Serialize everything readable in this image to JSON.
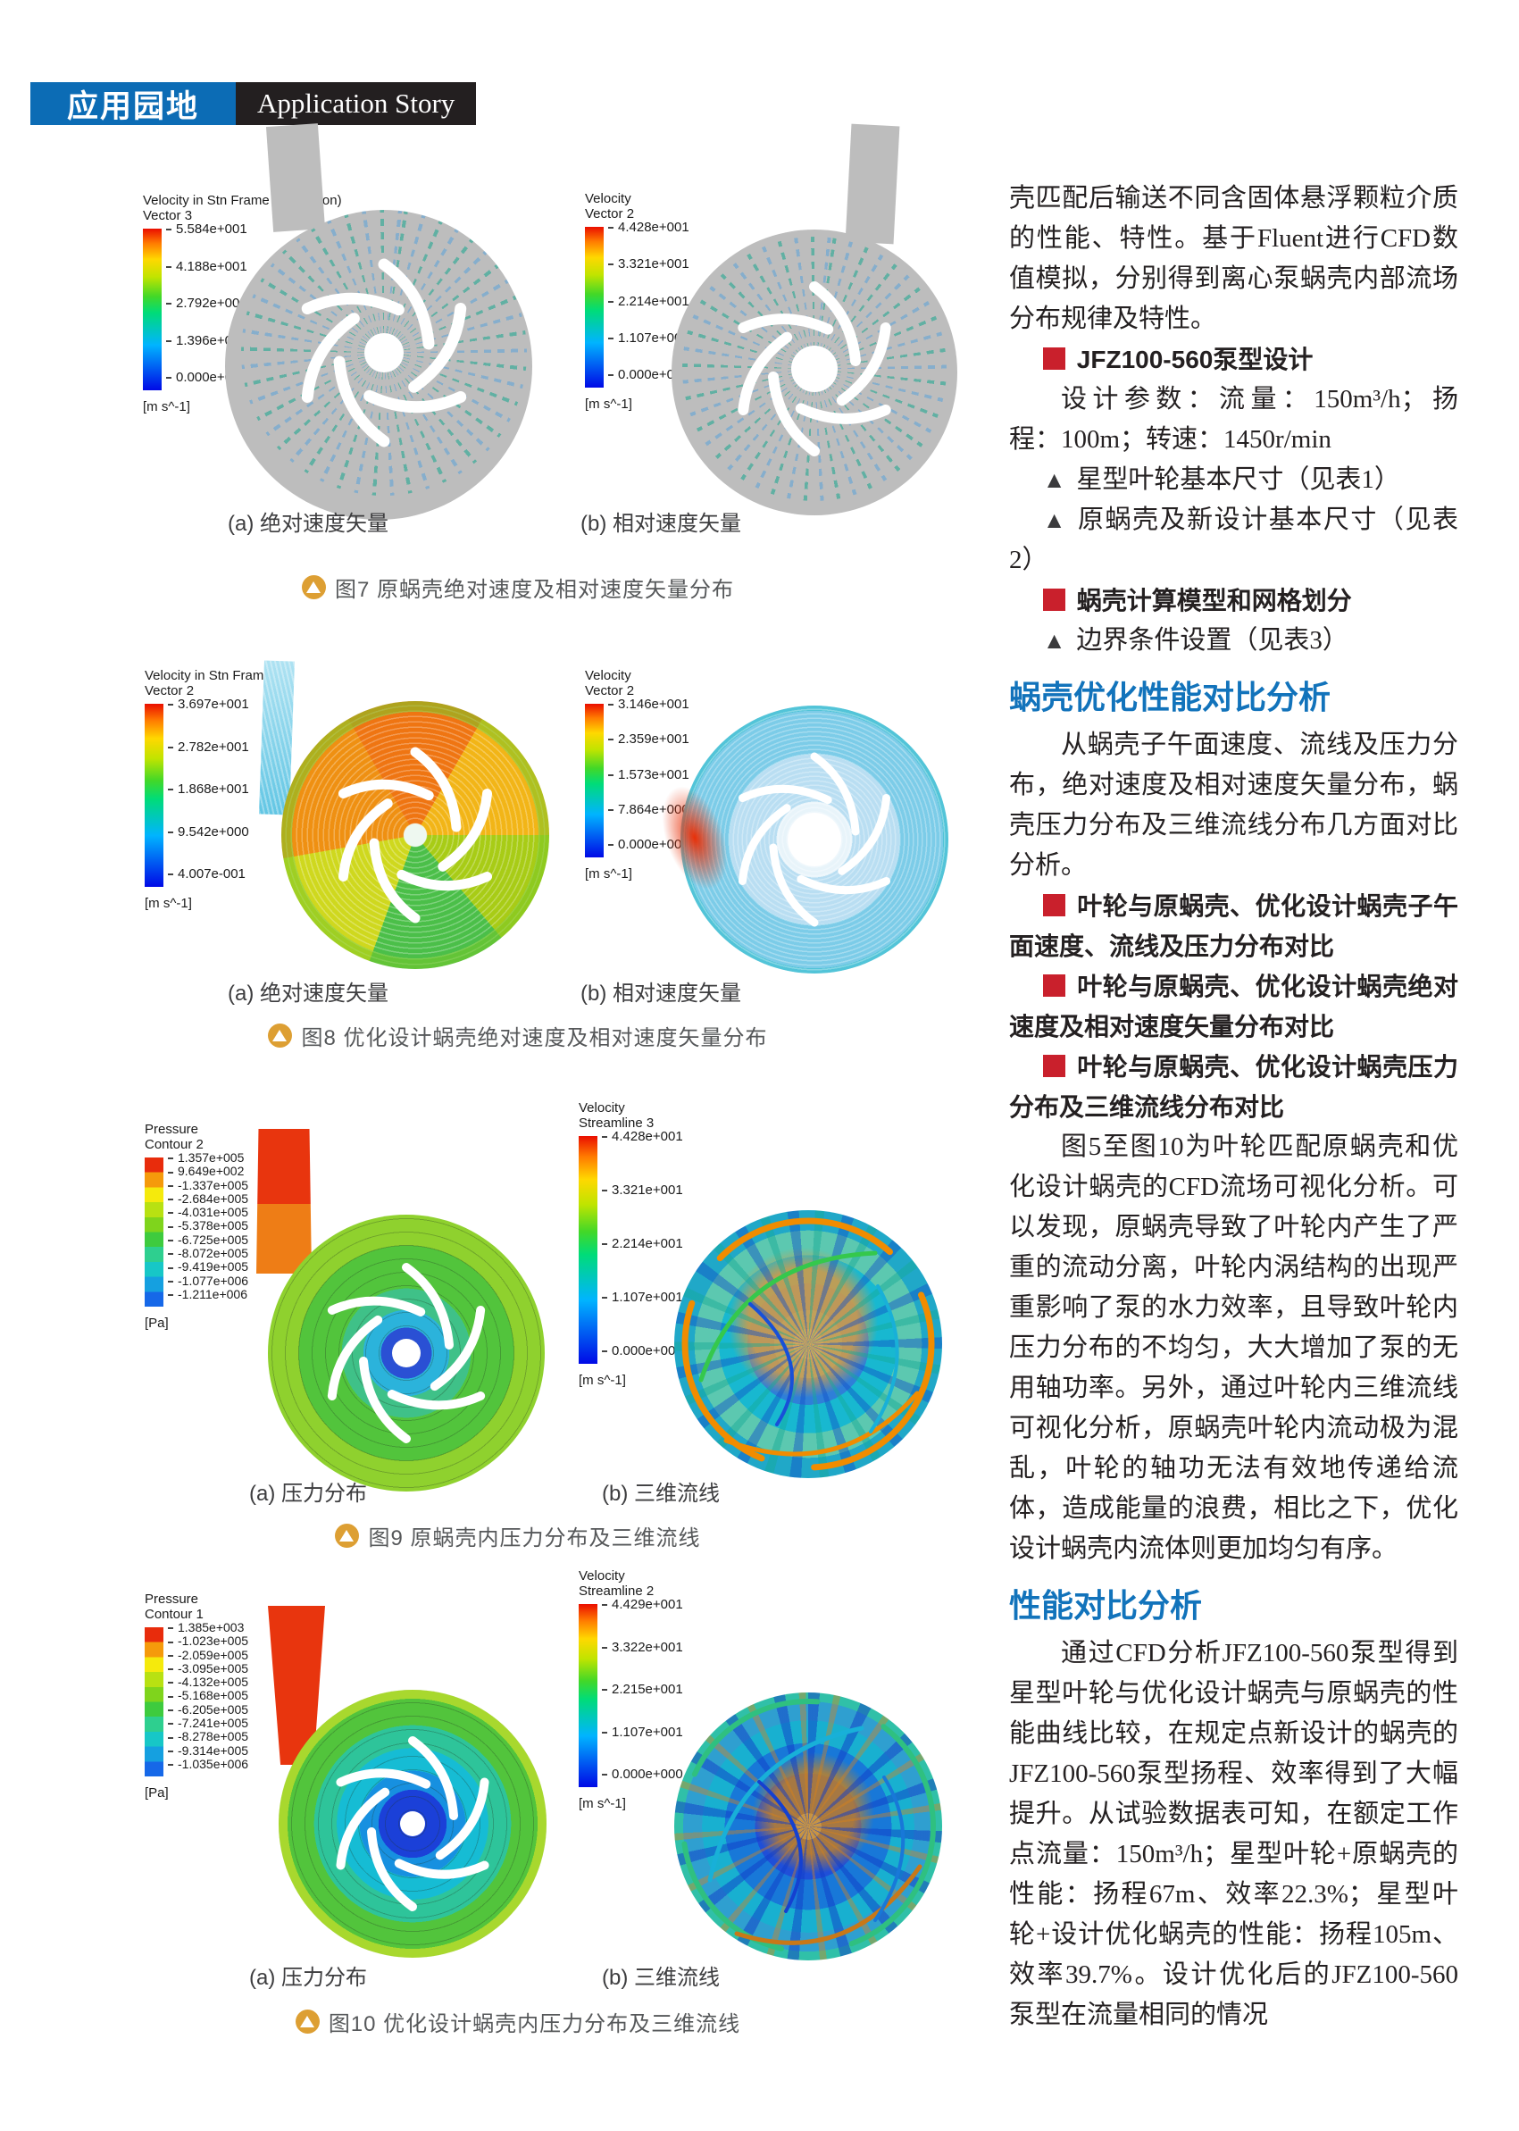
{
  "header": {
    "zh_title": "应用园地",
    "en_title": "Application Story"
  },
  "figures": {
    "fig7": {
      "caption": "图7 原蜗壳绝对速度及相对速度矢量分布",
      "panel_a_label": "(a) 绝对速度矢量",
      "panel_b_label": "(b) 相对速度矢量",
      "legend_a": {
        "title1": "Velocity in Stn Frame (Projection)",
        "title2": "Vector 3",
        "ticks": [
          "5.584e+001",
          "4.188e+001",
          "2.792e+001",
          "1.396e+001",
          "0.000e+000"
        ],
        "unit": "[m s^-1]"
      },
      "legend_b": {
        "title1": "Velocity",
        "title2": "Vector 2",
        "ticks": [
          "4.428e+001",
          "3.321e+001",
          "2.214e+001",
          "1.107e+001",
          "0.000e+000"
        ],
        "unit": "[m s^-1]"
      }
    },
    "fig8": {
      "caption": "图8 优化设计蜗壳绝对速度及相对速度矢量分布",
      "panel_a_label": "(a) 绝对速度矢量",
      "panel_b_label": "(b) 相对速度矢量",
      "legend_a": {
        "title1": "Velocity in Stn Frame",
        "title2": "Vector 2",
        "ticks": [
          "3.697e+001",
          "2.782e+001",
          "1.868e+001",
          "9.542e+000",
          "4.007e-001"
        ],
        "unit": "[m s^-1]"
      },
      "legend_b": {
        "title1": "Velocity",
        "title2": "Vector 2",
        "ticks": [
          "3.146e+001",
          "2.359e+001",
          "1.573e+001",
          "7.864e+000",
          "0.000e+000"
        ],
        "unit": "[m s^-1]"
      }
    },
    "fig9": {
      "caption": "图9 原蜗壳内压力分布及三维流线",
      "panel_a_label": "(a) 压力分布",
      "panel_b_label": "(b) 三维流线",
      "legend_a": {
        "title1": "Pressure",
        "title2": "Contour 2",
        "ticks": [
          "1.357e+005",
          "9.649e+002",
          "-1.337e+005",
          "-2.684e+005",
          "-4.031e+005",
          "-5.378e+005",
          "-6.725e+005",
          "-8.072e+005",
          "-9.419e+005",
          "-1.077e+006",
          "-1.211e+006"
        ],
        "unit": "[Pa]"
      },
      "legend_b": {
        "title1": "Velocity",
        "title2": "Streamline 3",
        "ticks": [
          "4.428e+001",
          "3.321e+001",
          "2.214e+001",
          "1.107e+001",
          "0.000e+000"
        ],
        "unit": "[m s^-1]"
      }
    },
    "fig10": {
      "caption": "图10 优化设计蜗壳内压力分布及三维流线",
      "panel_a_label": "(a) 压力分布",
      "panel_b_label": "(b) 三维流线",
      "legend_a": {
        "title1": "Pressure",
        "title2": "Contour 1",
        "ticks": [
          "1.385e+003",
          "-1.023e+005",
          "-2.059e+005",
          "-3.095e+005",
          "-4.132e+005",
          "-5.168e+005",
          "-6.205e+005",
          "-7.241e+005",
          "-8.278e+005",
          "-9.314e+005",
          "-1.035e+006"
        ],
        "unit": "[Pa]"
      },
      "legend_b": {
        "title1": "Velocity",
        "title2": "Streamline 2",
        "ticks": [
          "4.429e+001",
          "3.322e+001",
          "2.215e+001",
          "1.107e+001",
          "0.000e+000"
        ],
        "unit": "[m s^-1]"
      }
    }
  },
  "article": {
    "para1": "壳匹配后输送不同含固体悬浮颗粒介质的性能、特性。基于Fluent进行CFD数值模拟，分别得到离心泵蜗壳内部流场分布规律及特性。",
    "bullet1": "JFZ100-560泵型设计",
    "para2": "设计参数：流量：150m³/h；扬程：100m；转速：1450r/min",
    "tri1": "星型叶轮基本尺寸（见表1）",
    "tri2": "原蜗壳及新设计基本尺寸（见表2）",
    "bullet2": "蜗壳计算模型和网格划分",
    "tri3": "边界条件设置（见表3）",
    "heading1": "蜗壳优化性能对比分析",
    "para3": "从蜗壳子午面速度、流线及压力分布，绝对速度及相对速度矢量分布，蜗壳压力分布及三维流线分布几方面对比分析。",
    "bullet3": "叶轮与原蜗壳、优化设计蜗壳子午面速度、流线及压力分布对比",
    "bullet4": "叶轮与原蜗壳、优化设计蜗壳绝对速度及相对速度矢量分布对比",
    "bullet5": "叶轮与原蜗壳、优化设计蜗壳压力分布及三维流线分布对比",
    "para4": "图5至图10为叶轮匹配原蜗壳和优化设计蜗壳的CFD流场可视化分析。可以发现，原蜗壳导致了叶轮内产生了严重的流动分离，叶轮内涡结构的出现严重影响了泵的水力效率，且导致叶轮内压力分布的不均匀，大大增加了泵的无用轴功率。另外，通过叶轮内三维流线可视化分析，原蜗壳叶轮内流动极为混乱，叶轮的轴功无法有效地传递给流体，造成能量的浪费，相比之下，优化设计蜗壳内流体则更加均匀有序。",
    "heading2": "性能对比分析",
    "para5": "通过CFD分析JFZ100-560泵型得到星型叶轮与优化设计蜗壳与原蜗壳的性能曲线比较，在规定点新设计的蜗壳的JFZ100-560泵型扬程、效率得到了大幅提升。从试验数据表可知，在额定工作点流量：150m³/h；星型叶轮+原蜗壳的性能：扬程67m、效率22.3%；星型叶轮+设计优化蜗壳的性能：扬程105m、效率39.7%。设计优化后的JFZ100-560泵型在流量相同的情况"
  }
}
